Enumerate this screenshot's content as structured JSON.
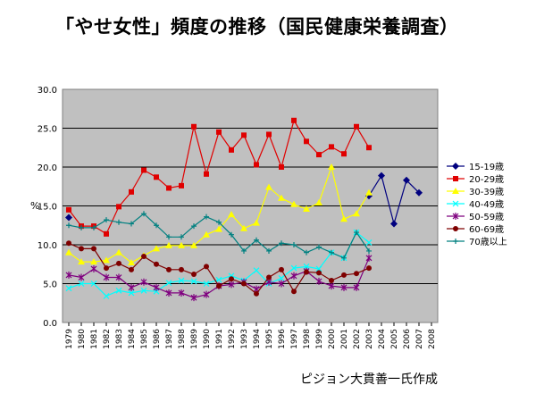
{
  "title": "「やせ女性」頻度の推移（国民健康栄養調査）",
  "credit": "ピジョン大貫善一氏作成",
  "chart_data": {
    "type": "line",
    "title": "「やせ女性」頻度の推移（国民健康栄養調査）",
    "ylabel": "%",
    "ylim": [
      0,
      30
    ],
    "yticks": [
      "0.0",
      "5.0",
      "10.0",
      "15.0",
      "20.0",
      "25.0",
      "30.0"
    ],
    "grid": true,
    "legend": "right",
    "x": [
      "1979",
      "1980",
      "1981",
      "1982",
      "1983",
      "1984",
      "1985",
      "1986",
      "1987",
      "1988",
      "1989",
      "1990",
      "1991",
      "1992",
      "1993",
      "1994",
      "1995",
      "1996",
      "1997",
      "1998",
      "1999",
      "2000",
      "2001",
      "2002",
      "2003",
      "2004",
      "2005",
      "2006",
      "2007",
      "2008"
    ],
    "series": [
      {
        "name": "15-19歳",
        "color": "#00007f",
        "marker": "diamond",
        "values": [
          13.5,
          null,
          null,
          null,
          null,
          null,
          null,
          null,
          null,
          null,
          null,
          null,
          null,
          null,
          null,
          null,
          null,
          null,
          null,
          null,
          null,
          null,
          null,
          null,
          16.3,
          18.9,
          12.7,
          18.3,
          16.7,
          null
        ]
      },
      {
        "name": "20-29歳",
        "color": "#e00000",
        "marker": "square",
        "values": [
          14.5,
          12.4,
          12.4,
          11.4,
          14.9,
          16.8,
          19.6,
          18.7,
          17.3,
          17.6,
          25.2,
          19.1,
          24.5,
          22.2,
          24.1,
          20.3,
          24.2,
          20.0,
          26.0,
          23.3,
          21.6,
          22.6,
          21.7,
          25.2,
          22.5,
          null,
          null,
          null,
          null,
          null
        ]
      },
      {
        "name": "30-39歳",
        "color": "#ffff00",
        "marker": "triangle",
        "values": [
          9.0,
          7.8,
          7.8,
          8.0,
          9.0,
          7.7,
          8.6,
          9.5,
          9.9,
          9.9,
          9.9,
          11.3,
          12.0,
          13.9,
          12.1,
          12.8,
          17.4,
          16.0,
          15.2,
          14.6,
          15.4,
          20.0,
          13.3,
          14.0,
          16.7,
          null,
          null,
          null,
          null,
          null
        ]
      },
      {
        "name": "40-49歳",
        "color": "#00ffff",
        "marker": "x",
        "values": [
          4.4,
          5.0,
          5.0,
          3.4,
          4.1,
          3.8,
          4.1,
          4.0,
          5.1,
          5.4,
          5.3,
          5.0,
          5.5,
          6.0,
          5.4,
          6.7,
          5.0,
          5.7,
          7.0,
          7.2,
          6.9,
          9.0,
          8.3,
          11.6,
          10.3,
          null,
          null,
          null,
          null,
          null
        ]
      },
      {
        "name": "50-59歳",
        "color": "#7f007f",
        "marker": "star",
        "values": [
          6.1,
          5.8,
          6.9,
          5.8,
          5.8,
          4.5,
          5.2,
          4.5,
          3.8,
          3.8,
          3.2,
          3.6,
          4.7,
          4.9,
          5.2,
          4.3,
          5.2,
          5.0,
          6.0,
          6.6,
          5.3,
          4.7,
          4.5,
          4.5,
          8.3,
          null,
          null,
          null,
          null,
          null
        ]
      },
      {
        "name": "60-69歳",
        "color": "#7f0000",
        "marker": "circle",
        "values": [
          10.2,
          9.5,
          9.5,
          7.0,
          7.6,
          6.8,
          8.5,
          7.5,
          6.8,
          6.8,
          6.2,
          7.2,
          4.7,
          5.6,
          5.0,
          3.7,
          5.8,
          6.8,
          4.0,
          6.5,
          6.4,
          5.4,
          6.1,
          6.3,
          7.0,
          null,
          null,
          null,
          null,
          null
        ]
      },
      {
        "name": "70歳以上",
        "color": "#008080",
        "marker": "plus",
        "values": [
          12.5,
          12.2,
          12.2,
          13.2,
          12.9,
          12.7,
          14.0,
          12.5,
          11.0,
          11.0,
          12.4,
          13.6,
          12.9,
          11.3,
          9.2,
          10.6,
          9.2,
          10.2,
          10.0,
          9.0,
          9.7,
          9.0,
          8.3,
          11.6,
          9.2,
          null,
          null,
          null,
          null,
          null
        ]
      }
    ]
  }
}
